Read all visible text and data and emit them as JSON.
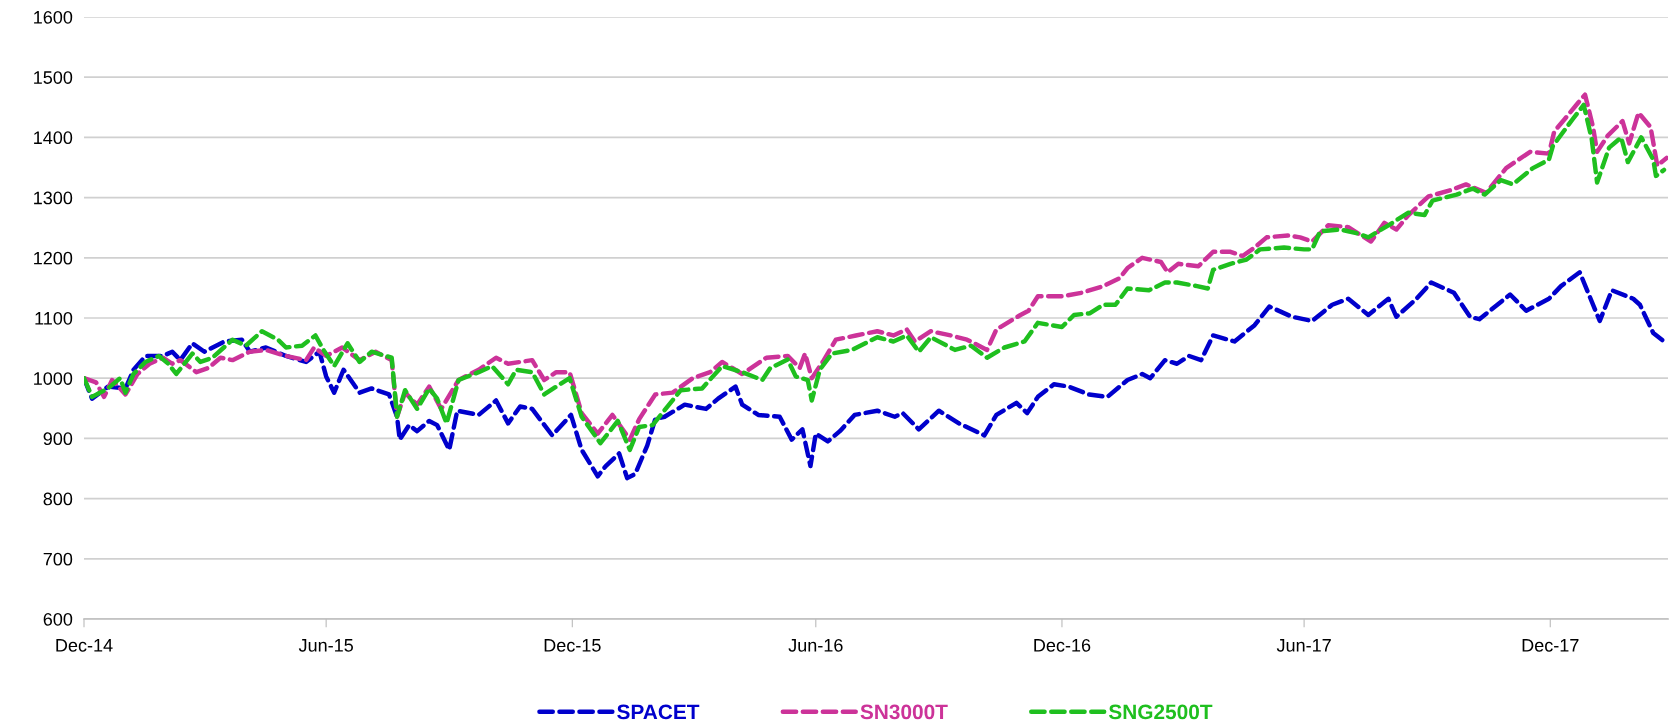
{
  "chart_data": {
    "type": "line",
    "line_style": "dashed",
    "marker": "none",
    "grid": "y",
    "legend": "bottom",
    "xlim": [
      "2014-12-31",
      "2018-03-29"
    ],
    "ylim": [
      600,
      1600
    ],
    "xticks": [
      {
        "value": "2014-12-31",
        "label": "Dec-14"
      },
      {
        "value": "2015-06-30",
        "label": "Jun-15"
      },
      {
        "value": "2015-12-31",
        "label": "Dec-15"
      },
      {
        "value": "2016-06-30",
        "label": "Jun-16"
      },
      {
        "value": "2016-12-31",
        "label": "Dec-16"
      },
      {
        "value": "2017-06-30",
        "label": "Jun-17"
      },
      {
        "value": "2017-12-31",
        "label": "Dec-17"
      }
    ],
    "yticks": [
      600,
      700,
      800,
      900,
      1000,
      1100,
      1200,
      1300,
      1400,
      1500,
      1600
    ],
    "series": [
      {
        "name": "SPACET",
        "color": "#0000cc",
        "x": [
          "2014-12-31",
          "2015-01-06",
          "2015-01-18",
          "2015-01-31",
          "2015-02-06",
          "2015-02-15",
          "2015-02-28",
          "2015-03-07",
          "2015-03-13",
          "2015-03-22",
          "2015-03-31",
          "2015-04-15",
          "2015-04-28",
          "2015-05-04",
          "2015-05-16",
          "2015-05-31",
          "2015-06-15",
          "2015-06-25",
          "2015-06-30",
          "2015-07-06",
          "2015-07-13",
          "2015-07-25",
          "2015-08-03",
          "2015-08-16",
          "2015-08-22",
          "2015-08-24",
          "2015-08-31",
          "2015-09-06",
          "2015-09-15",
          "2015-09-21",
          "2015-09-30",
          "2015-10-06",
          "2015-10-22",
          "2015-11-04",
          "2015-11-13",
          "2015-11-22",
          "2015-12-01",
          "2015-12-16",
          "2015-12-30",
          "2016-01-07",
          "2016-01-19",
          "2016-01-25",
          "2016-02-04",
          "2016-02-10",
          "2016-02-16",
          "2016-02-25",
          "2016-03-02",
          "2016-03-09",
          "2016-03-24",
          "2016-04-09",
          "2016-04-18",
          "2016-05-01",
          "2016-05-06",
          "2016-05-18",
          "2016-06-03",
          "2016-06-12",
          "2016-06-20",
          "2016-06-26",
          "2016-06-30",
          "2016-07-09",
          "2016-07-18",
          "2016-07-29",
          "2016-08-15",
          "2016-08-28",
          "2016-09-03",
          "2016-09-15",
          "2016-09-30",
          "2016-10-15",
          "2016-11-03",
          "2016-11-12",
          "2016-11-27",
          "2016-12-05",
          "2016-12-13",
          "2016-12-25",
          "2017-01-05",
          "2017-01-20",
          "2017-02-03",
          "2017-02-18",
          "2017-03-01",
          "2017-03-07",
          "2017-03-18",
          "2017-03-27",
          "2017-04-05",
          "2017-04-14",
          "2017-04-23",
          "2017-05-09",
          "2017-05-24",
          "2017-06-04",
          "2017-06-21",
          "2017-07-06",
          "2017-07-21",
          "2017-08-02",
          "2017-08-17",
          "2017-09-01",
          "2017-09-07",
          "2017-09-22",
          "2017-10-03",
          "2017-10-20",
          "2017-11-01",
          "2017-11-08",
          "2017-12-01",
          "2017-12-13",
          "2017-12-30",
          "2018-01-08",
          "2018-01-22",
          "2018-02-06",
          "2018-02-15",
          "2018-03-03",
          "2018-03-08",
          "2018-03-18",
          "2018-03-26"
        ],
        "values": [
          1000,
          966,
          986,
          983,
          1014,
          1037,
          1037,
          1044,
          1030,
          1058,
          1044,
          1061,
          1064,
          1044,
          1051,
          1037,
          1027,
          1044,
          1003,
          976,
          1014,
          976,
          983,
          973,
          936,
          898,
          922,
          912,
          929,
          922,
          881,
          946,
          939,
          963,
          925,
          953,
          949,
          905,
          939,
          881,
          837,
          854,
          875,
          834,
          841,
          888,
          932,
          936,
          956,
          949,
          966,
          986,
          956,
          939,
          936,
          898,
          915,
          854,
          908,
          895,
          912,
          939,
          946,
          936,
          942,
          915,
          946,
          925,
          905,
          939,
          959,
          942,
          969,
          990,
          986,
          973,
          969,
          997,
          1007,
          1000,
          1030,
          1024,
          1037,
          1030,
          1071,
          1061,
          1088,
          1119,
          1102,
          1095,
          1122,
          1132,
          1105,
          1132,
          1102,
          1132,
          1159,
          1142,
          1102,
          1098,
          1139,
          1112,
          1132,
          1153,
          1176,
          1095,
          1146,
          1132,
          1122,
          1075,
          1061
        ]
      },
      {
        "name": "SN3000T",
        "color": "#cc3399",
        "x": [
          "2014-12-31",
          "2015-01-09",
          "2015-01-15",
          "2015-01-21",
          "2015-01-31",
          "2015-02-09",
          "2015-02-18",
          "2015-02-28",
          "2015-03-07",
          "2015-03-13",
          "2015-03-25",
          "2015-04-03",
          "2015-04-12",
          "2015-04-21",
          "2015-05-04",
          "2015-05-16",
          "2015-05-31",
          "2015-06-15",
          "2015-06-21",
          "2015-06-30",
          "2015-07-12",
          "2015-07-25",
          "2015-08-06",
          "2015-08-18",
          "2015-08-22",
          "2015-08-28",
          "2015-09-06",
          "2015-09-15",
          "2015-09-24",
          "2015-10-07",
          "2015-10-22",
          "2015-11-04",
          "2015-11-13",
          "2015-11-22",
          "2015-12-01",
          "2015-12-10",
          "2015-12-19",
          "2015-12-29",
          "2016-01-07",
          "2016-01-19",
          "2016-01-30",
          "2016-02-12",
          "2016-02-19",
          "2016-03-02",
          "2016-03-15",
          "2016-03-30",
          "2016-04-12",
          "2016-04-21",
          "2016-05-06",
          "2016-05-24",
          "2016-06-09",
          "2016-06-18",
          "2016-06-22",
          "2016-06-27",
          "2016-07-06",
          "2016-07-15",
          "2016-07-30",
          "2016-08-15",
          "2016-08-27",
          "2016-09-06",
          "2016-09-12",
          "2016-09-24",
          "2016-10-09",
          "2016-10-21",
          "2016-11-05",
          "2016-11-12",
          "2016-11-30",
          "2016-12-06",
          "2016-12-13",
          "2016-12-31",
          "2017-01-15",
          "2017-01-31",
          "2017-02-12",
          "2017-02-18",
          "2017-03-01",
          "2017-03-15",
          "2017-03-20",
          "2017-03-28",
          "2017-04-12",
          "2017-04-23",
          "2017-05-06",
          "2017-05-15",
          "2017-05-24",
          "2017-06-02",
          "2017-06-18",
          "2017-06-27",
          "2017-07-06",
          "2017-07-18",
          "2017-08-02",
          "2017-08-19",
          "2017-08-29",
          "2017-09-07",
          "2017-09-16",
          "2017-10-01",
          "2017-10-17",
          "2017-10-29",
          "2017-11-13",
          "2017-11-28",
          "2017-12-16",
          "2017-12-30",
          "2018-01-03",
          "2018-01-11",
          "2018-01-21",
          "2018-01-26",
          "2018-02-01",
          "2018-02-04",
          "2018-02-12",
          "2018-02-23",
          "2018-02-28",
          "2018-03-07",
          "2018-03-16",
          "2018-03-21",
          "2018-03-28"
        ],
        "values": [
          1000,
          993,
          969,
          997,
          973,
          1007,
          1024,
          1034,
          1024,
          1030,
          1010,
          1017,
          1034,
          1030,
          1044,
          1047,
          1037,
          1030,
          1051,
          1037,
          1051,
          1030,
          1044,
          1030,
          936,
          976,
          956,
          986,
          949,
          997,
          1014,
          1034,
          1024,
          1027,
          1030,
          997,
          1010,
          1010,
          942,
          908,
          939,
          898,
          932,
          973,
          976,
          1000,
          1010,
          1027,
          1007,
          1034,
          1037,
          1017,
          1041,
          1000,
          1030,
          1064,
          1071,
          1078,
          1071,
          1081,
          1061,
          1078,
          1071,
          1064,
          1047,
          1081,
          1105,
          1112,
          1136,
          1136,
          1142,
          1153,
          1166,
          1183,
          1200,
          1193,
          1176,
          1190,
          1186,
          1210,
          1210,
          1203,
          1217,
          1234,
          1237,
          1234,
          1227,
          1254,
          1251,
          1227,
          1258,
          1247,
          1271,
          1302,
          1312,
          1322,
          1308,
          1349,
          1376,
          1373,
          1410,
          1431,
          1458,
          1471,
          1417,
          1376,
          1403,
          1427,
          1390,
          1441,
          1417,
          1353,
          1366
        ]
      },
      {
        "name": "SNG2500T",
        "color": "#1fbf1f",
        "x": [
          "2014-12-31",
          "2015-01-06",
          "2015-01-18",
          "2015-01-27",
          "2015-01-31",
          "2015-02-06",
          "2015-02-15",
          "2015-02-25",
          "2015-03-04",
          "2015-03-10",
          "2015-03-22",
          "2015-03-28",
          "2015-04-06",
          "2015-04-21",
          "2015-05-01",
          "2015-05-13",
          "2015-05-25",
          "2015-05-31",
          "2015-06-12",
          "2015-06-22",
          "2015-06-28",
          "2015-07-06",
          "2015-07-16",
          "2015-07-25",
          "2015-08-03",
          "2015-08-18",
          "2015-08-22",
          "2015-08-28",
          "2015-09-06",
          "2015-09-15",
          "2015-09-21",
          "2015-09-28",
          "2015-10-07",
          "2015-10-22",
          "2015-11-01",
          "2015-11-13",
          "2015-11-19",
          "2015-12-01",
          "2015-12-10",
          "2015-12-19",
          "2015-12-29",
          "2016-01-07",
          "2016-01-21",
          "2016-02-03",
          "2016-02-12",
          "2016-02-19",
          "2016-02-29",
          "2016-03-21",
          "2016-04-06",
          "2016-04-21",
          "2016-05-06",
          "2016-05-21",
          "2016-05-27",
          "2016-06-09",
          "2016-06-15",
          "2016-06-24",
          "2016-06-27",
          "2016-07-03",
          "2016-07-12",
          "2016-07-27",
          "2016-08-15",
          "2016-08-27",
          "2016-09-06",
          "2016-09-15",
          "2016-09-24",
          "2016-10-12",
          "2016-10-24",
          "2016-11-05",
          "2016-11-18",
          "2016-12-03",
          "2016-12-13",
          "2016-12-31",
          "2017-01-09",
          "2017-01-21",
          "2017-01-31",
          "2017-02-09",
          "2017-02-18",
          "2017-03-06",
          "2017-03-18",
          "2017-03-27",
          "2017-04-11",
          "2017-04-19",
          "2017-04-23",
          "2017-05-06",
          "2017-05-18",
          "2017-05-28",
          "2017-06-15",
          "2017-06-30",
          "2017-07-06",
          "2017-07-12",
          "2017-07-27",
          "2017-08-08",
          "2017-08-17",
          "2017-09-01",
          "2017-09-16",
          "2017-09-28",
          "2017-10-04",
          "2017-10-22",
          "2017-11-03",
          "2017-11-12",
          "2017-11-24",
          "2017-12-03",
          "2017-12-18",
          "2017-12-30",
          "2018-01-02",
          "2018-01-17",
          "2018-01-25",
          "2018-01-31",
          "2018-02-04",
          "2018-02-13",
          "2018-02-22",
          "2018-02-27",
          "2018-03-09",
          "2018-03-18",
          "2018-03-20",
          "2018-03-26"
        ],
        "values": [
          1000,
          969,
          983,
          1000,
          976,
          1007,
          1027,
          1037,
          1024,
          1007,
          1041,
          1027,
          1034,
          1064,
          1054,
          1078,
          1064,
          1051,
          1054,
          1071,
          1047,
          1020,
          1058,
          1027,
          1044,
          1034,
          936,
          980,
          949,
          983,
          966,
          925,
          997,
          1010,
          1020,
          990,
          1014,
          1010,
          973,
          986,
          1000,
          936,
          892,
          929,
          881,
          919,
          922,
          980,
          983,
          1020,
          1010,
          997,
          1017,
          1031,
          1003,
          997,
          963,
          1014,
          1041,
          1047,
          1068,
          1061,
          1071,
          1044,
          1068,
          1047,
          1054,
          1034,
          1051,
          1061,
          1092,
          1085,
          1105,
          1108,
          1122,
          1122,
          1149,
          1146,
          1159,
          1159,
          1153,
          1149,
          1180,
          1190,
          1197,
          1214,
          1217,
          1214,
          1214,
          1244,
          1247,
          1241,
          1234,
          1254,
          1275,
          1271,
          1295,
          1305,
          1315,
          1305,
          1329,
          1322,
          1349,
          1363,
          1386,
          1431,
          1454,
          1397,
          1325,
          1383,
          1400,
          1359,
          1400,
          1363,
          1336,
          1346
        ]
      }
    ]
  }
}
